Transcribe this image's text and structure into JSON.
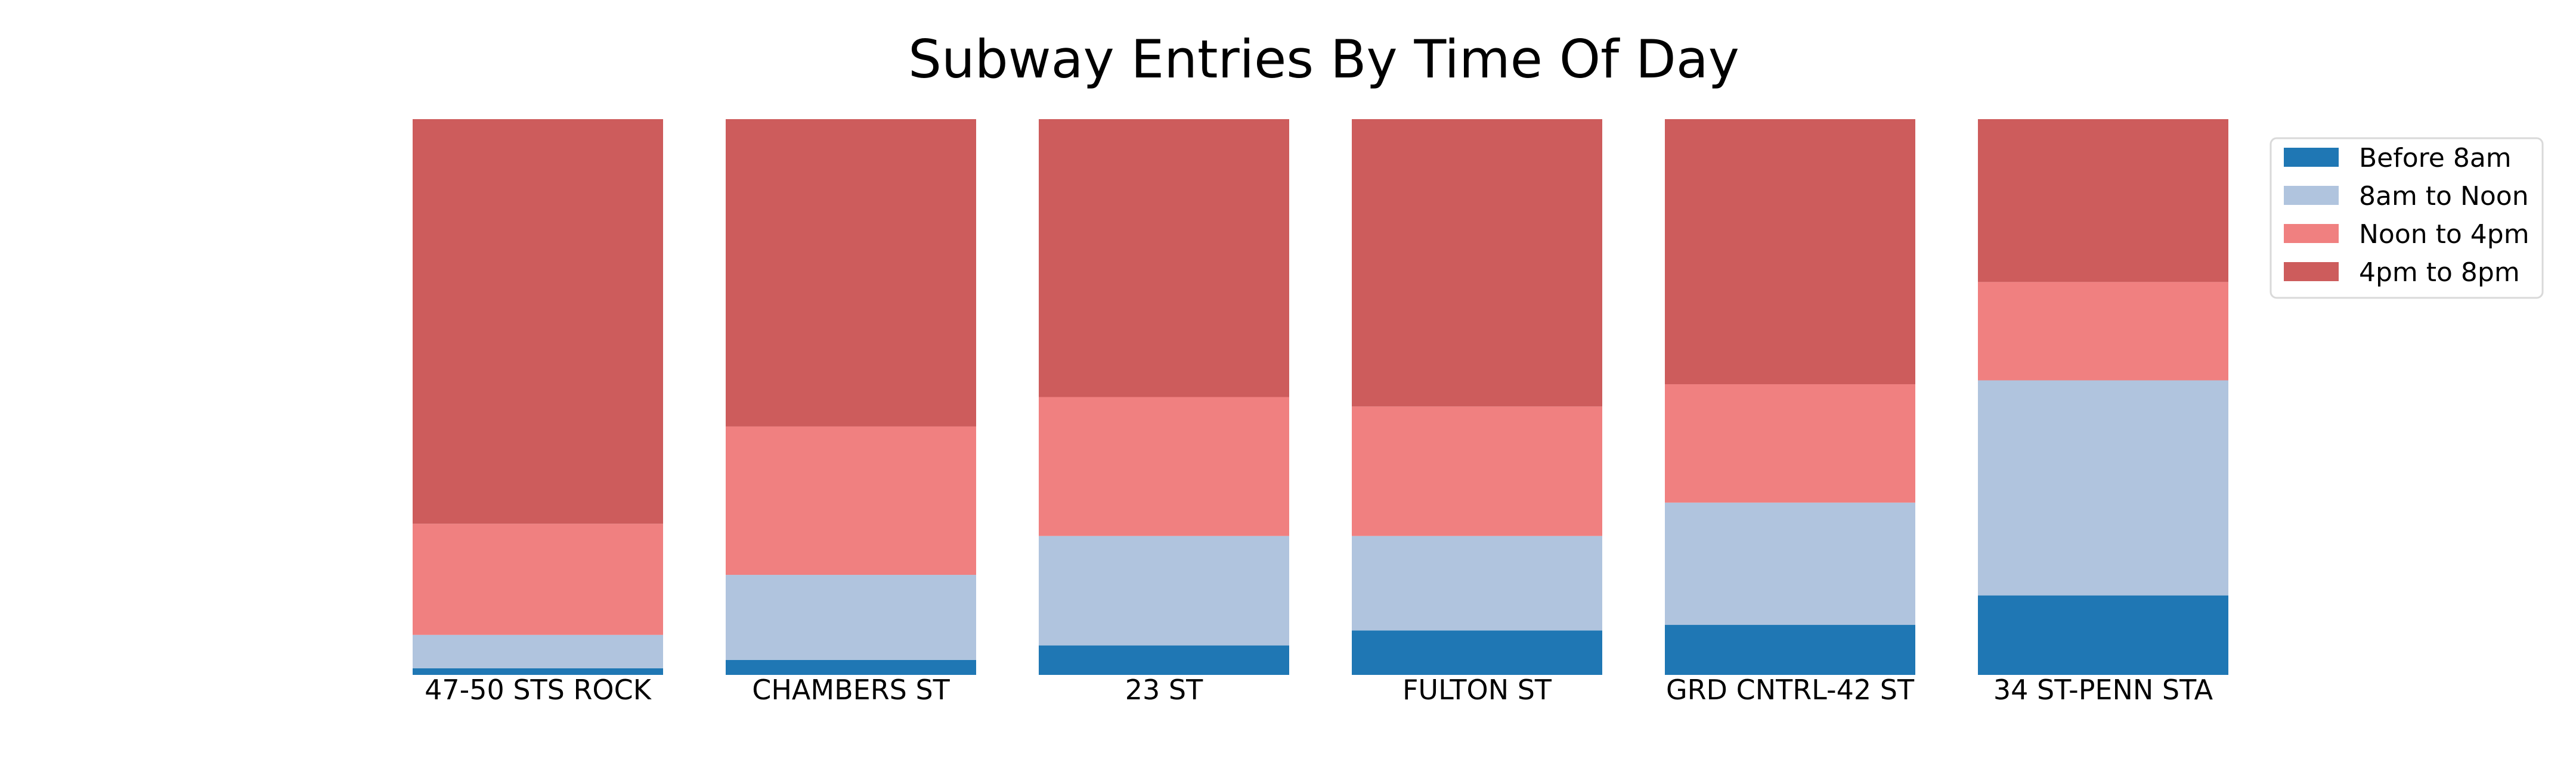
{
  "chart_data": {
    "type": "bar",
    "stacked": true,
    "normalized": true,
    "title": "Subway Entries By Time Of Day",
    "xlabel": "",
    "ylabel": "",
    "ylim": [
      0,
      1
    ],
    "grid": false,
    "legend_position": "top-right",
    "categories": [
      "47-50 STS ROCK",
      "CHAMBERS ST",
      "23 ST",
      "FULTON ST",
      "GRD CNTRL-42 ST",
      "34 ST-PENN STA"
    ],
    "series": [
      {
        "name": "Before 8am",
        "color": "#1f77b4",
        "values": [
          0.012,
          0.027,
          0.053,
          0.08,
          0.09,
          0.143
        ]
      },
      {
        "name": "8am to Noon",
        "color": "#b0c4de",
        "values": [
          0.06,
          0.153,
          0.197,
          0.17,
          0.22,
          0.387
        ]
      },
      {
        "name": "Noon to 4pm",
        "color": "#f08080",
        "values": [
          0.2,
          0.267,
          0.25,
          0.233,
          0.213,
          0.177
        ]
      },
      {
        "name": "4pm to 8pm",
        "color": "#cd5c5c",
        "values": [
          0.728,
          0.553,
          0.5,
          0.517,
          0.477,
          0.293
        ]
      }
    ]
  }
}
